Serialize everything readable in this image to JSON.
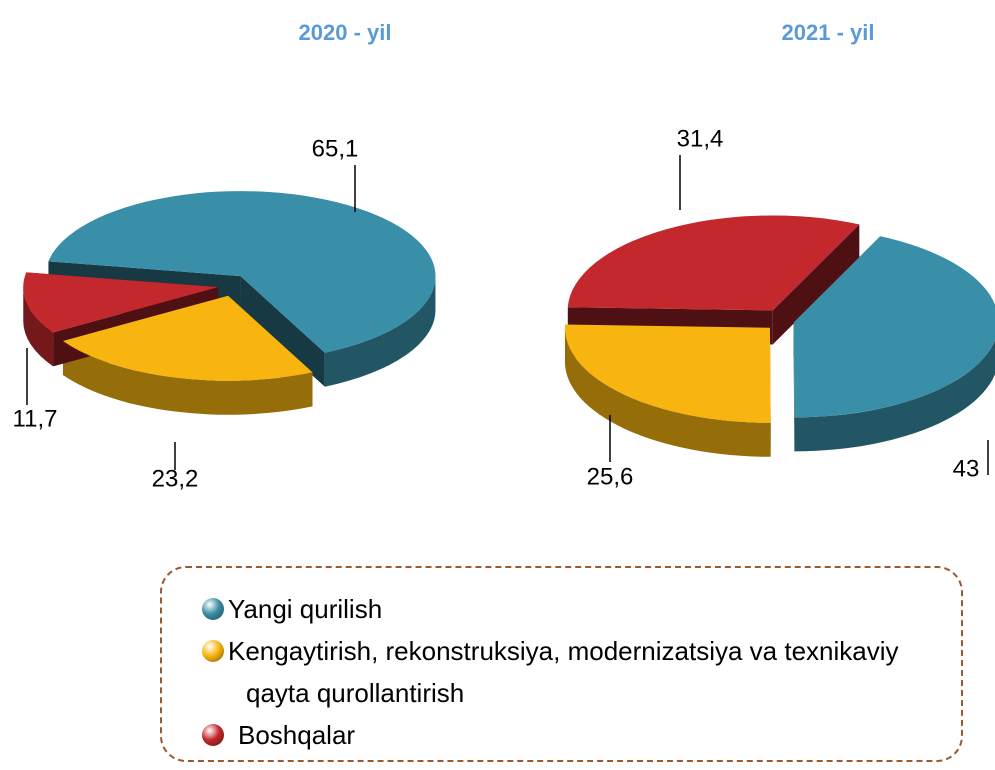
{
  "chart_data": [
    {
      "type": "pie3d",
      "title": "2020 -  yil",
      "categories": [
        "Yangi qurilish",
        "Kengaytirish, rekonstruksiya, modernizatsiya va texnikaviy qayta qurollantirish",
        "Boshqalar"
      ],
      "colors": [
        "#3a8fa8",
        "#f9b50f",
        "#c2282c"
      ],
      "values": [
        65.1,
        23.2,
        11.7
      ],
      "value_labels": [
        "65,1",
        "23,2",
        "11,7"
      ]
    },
    {
      "type": "pie3d",
      "title": "2021 -  yil",
      "categories": [
        "Yangi qurilish",
        "Kengaytirish, rekonstruksiya, modernizatsiya va texnikaviy qayta qurollantirish",
        "Boshqalar"
      ],
      "colors": [
        "#3a8fa8",
        "#f9b50f",
        "#c2282c"
      ],
      "values": [
        43,
        25.6,
        31.4
      ],
      "value_labels": [
        "43",
        "25,6",
        "31,4"
      ]
    }
  ]
}
